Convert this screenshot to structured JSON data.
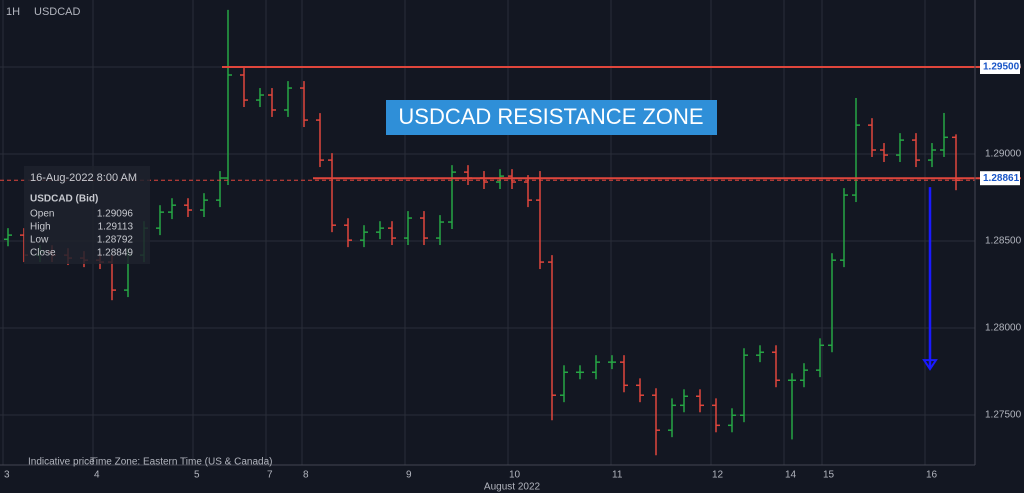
{
  "chart_data": {
    "type": "ohlc",
    "interval": "1H",
    "symbol": "USDCAD",
    "xlabel": "August 2022",
    "x": [
      2,
      6,
      10,
      13,
      17,
      21,
      25,
      28,
      32,
      36,
      40,
      43,
      47,
      51,
      55,
      57,
      61,
      65,
      68,
      72,
      76,
      80,
      83,
      87,
      91,
      95,
      98,
      102,
      106,
      110,
      113,
      117,
      121,
      125,
      128,
      132,
      135,
      138,
      141,
      145,
      149,
      153,
      156,
      160,
      164,
      168,
      171,
      175,
      179,
      183,
      186,
      190,
      194,
      198,
      201,
      205,
      208,
      211,
      214,
      218,
      221,
      225,
      229,
      233,
      236,
      239
    ],
    "open": [
      1.2851,
      1.28534,
      1.28419,
      1.28436,
      1.28419,
      1.28402,
      1.2839,
      1.28379,
      1.28218,
      1.28419,
      1.28574,
      1.28666,
      1.28706,
      1.28678,
      1.28735,
      1.28862,
      1.29454,
      1.2931,
      1.29339,
      1.29253,
      1.29379,
      1.29195,
      1.28965,
      1.28591,
      1.28505,
      1.28551,
      1.28574,
      1.28517,
      1.28632,
      1.28517,
      1.28609,
      1.28896,
      1.28862,
      1.28839,
      1.28873,
      1.28839,
      1.28735,
      1.28379,
      1.27614,
      1.27746,
      1.27746,
      1.27804,
      1.27804,
      1.27671,
      1.27614,
      1.27413,
      1.27556,
      1.27608,
      1.27556,
      1.27441,
      1.27499,
      1.27844,
      1.27861,
      1.277,
      1.277,
      1.27758,
      1.27901,
      1.2839,
      1.28764,
      1.29166,
      1.29023,
      1.28994,
      1.2908,
      1.28965,
      1.29023,
      1.29096
    ],
    "high": [
      1.28574,
      1.28574,
      1.28476,
      1.28476,
      1.28459,
      1.28442,
      1.2843,
      1.28419,
      1.28459,
      1.28614,
      1.28706,
      1.28746,
      1.28746,
      1.28775,
      1.28902,
      1.29828,
      1.29494,
      1.29379,
      1.29379,
      1.29419,
      1.29419,
      1.29235,
      1.29005,
      1.28631,
      1.28591,
      1.28614,
      1.28614,
      1.28672,
      1.28672,
      1.28649,
      1.28936,
      1.28936,
      1.28902,
      1.28913,
      1.28913,
      1.28879,
      1.28902,
      1.28419,
      1.27786,
      1.27786,
      1.27844,
      1.27844,
      1.27844,
      1.27711,
      1.27654,
      1.27596,
      1.27648,
      1.27648,
      1.27596,
      1.27539,
      1.27884,
      1.27901,
      1.27901,
      1.2774,
      1.27798,
      1.27941,
      1.2843,
      1.28804,
      1.29322,
      1.29206,
      1.29063,
      1.2912,
      1.2912,
      1.29063,
      1.29236,
      1.29113
    ],
    "low": [
      1.2847,
      1.28379,
      1.28379,
      1.28379,
      1.28362,
      1.2835,
      1.28339,
      1.2816,
      1.28178,
      1.28379,
      1.28534,
      1.28626,
      1.28638,
      1.28638,
      1.28695,
      1.28822,
      1.2927,
      1.2927,
      1.29213,
      1.29213,
      1.29155,
      1.28925,
      1.28551,
      1.28465,
      1.28465,
      1.28511,
      1.28477,
      1.28477,
      1.28477,
      1.28477,
      1.28569,
      1.28822,
      1.28799,
      1.28799,
      1.28799,
      1.28695,
      1.28339,
      1.2747,
      1.27574,
      1.27706,
      1.27706,
      1.27764,
      1.27631,
      1.27574,
      1.27269,
      1.27373,
      1.27516,
      1.27516,
      1.27401,
      1.27401,
      1.27459,
      1.27804,
      1.2766,
      1.2736,
      1.2766,
      1.27718,
      1.27861,
      1.2835,
      1.28724,
      1.28983,
      1.28954,
      1.28954,
      1.28925,
      1.28925,
      1.28983,
      1.28792
    ],
    "close": [
      1.28534,
      1.28419,
      1.28436,
      1.28419,
      1.28402,
      1.2839,
      1.28379,
      1.28218,
      1.28419,
      1.28574,
      1.28666,
      1.28706,
      1.28678,
      1.28735,
      1.28862,
      1.29454,
      1.2931,
      1.29339,
      1.29253,
      1.29379,
      1.29195,
      1.28965,
      1.28591,
      1.28505,
      1.28551,
      1.28574,
      1.28517,
      1.28632,
      1.28517,
      1.28609,
      1.28896,
      1.28862,
      1.28839,
      1.28873,
      1.28839,
      1.28735,
      1.28379,
      1.27614,
      1.27746,
      1.27746,
      1.27804,
      1.27804,
      1.27671,
      1.27614,
      1.27413,
      1.27556,
      1.27608,
      1.27556,
      1.27441,
      1.27499,
      1.27844,
      1.27861,
      1.277,
      1.277,
      1.27758,
      1.27901,
      1.2839,
      1.28764,
      1.29166,
      1.29023,
      1.28994,
      1.2908,
      1.28965,
      1.29023,
      1.29096,
      1.28849
    ],
    "up_color": "#26a644",
    "down_color": "#e0463c",
    "xlim": [
      0,
      243.75
    ],
    "ylim": [
      1.27213,
      1.29885
    ],
    "xticks": [
      {
        "value": 0.75,
        "label": "3"
      },
      {
        "value": 23.25,
        "label": "4"
      },
      {
        "value": 48.25,
        "label": "5"
      },
      {
        "value": 66.5,
        "label": "7"
      },
      {
        "value": 75.5,
        "label": "8"
      },
      {
        "value": 101.25,
        "label": "9"
      },
      {
        "value": 127,
        "label": "10"
      },
      {
        "value": 152.75,
        "label": "11"
      },
      {
        "value": 177.75,
        "label": "12"
      },
      {
        "value": 196,
        "label": "14"
      },
      {
        "value": 205.5,
        "label": "15"
      },
      {
        "value": 231.25,
        "label": "16"
      }
    ],
    "yticks": [
      {
        "value": 1.295,
        "label": "1.29500"
      },
      {
        "value": 1.29,
        "label": "1.29000"
      },
      {
        "value": 1.285,
        "label": "1.28500"
      },
      {
        "value": 1.28,
        "label": "1.28000"
      },
      {
        "value": 1.275,
        "label": "1.27500"
      }
    ],
    "grid": true,
    "levels": [
      {
        "value": 1.295,
        "label": "1.29500",
        "from": 55.5,
        "color": "#e0463c"
      },
      {
        "value": 1.28861,
        "label": "1.28861",
        "from": 78.25,
        "color": "#e0463c"
      }
    ],
    "last_price": 1.28849,
    "annotation": "USDCAD RESISTANCE ZONE",
    "arrow": {
      "x": 232.5,
      "from": 1.2881,
      "to": 1.2777,
      "color": "#1a1aff"
    },
    "tooltip": {
      "date": "16-Aug-2022 8:00 AM",
      "series_name": "USDCAD (Bid)",
      "labels": [
        "Open",
        "High",
        "Low",
        "Close"
      ]
    },
    "footer": [
      "Indicative price",
      "Time Zone: Eastern Time (US & Canada)"
    ]
  }
}
